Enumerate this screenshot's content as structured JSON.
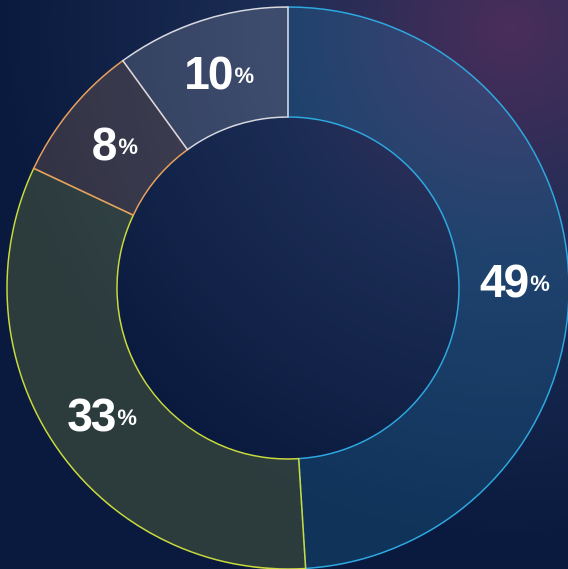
{
  "chart_data": {
    "type": "donut",
    "categories": [
      null,
      null,
      null,
      null
    ],
    "values": [
      49,
      33,
      8,
      10
    ],
    "value_labels": [
      "49%",
      "33%",
      "8%",
      "10%"
    ],
    "colors": [
      "#2ea8e0",
      "#c9da3c",
      "#e8a05e",
      "#d8d8e0"
    ]
  }
}
